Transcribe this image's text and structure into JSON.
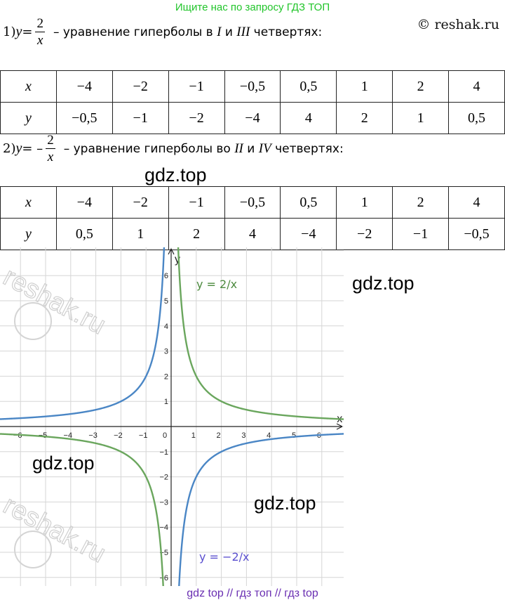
{
  "banner": "Ищите нас по запросу ГДЗ ТОП",
  "copyright": "© reshak.ru",
  "eq1": {
    "prefix": "1) ",
    "y": "y",
    "eq": " = ",
    "num": "2",
    "den": "x",
    "desc_a": "– уравнение гиперболы в ",
    "q1": "I",
    "and": " и ",
    "q2": "III",
    "desc_b": " четвертях:"
  },
  "eq2": {
    "prefix": "2) ",
    "y": "y",
    "eq": " = –",
    "num": "2",
    "den": "x",
    "desc_a": "– уравнение гиперболы во ",
    "q1": "II",
    "and": " и ",
    "q2": "IV",
    "desc_b": " четвертях:"
  },
  "table1": {
    "x_label": "x",
    "y_label": "y",
    "x": [
      "−4",
      "−2",
      "−1",
      "−0,5",
      "0,5",
      "1",
      "2",
      "4"
    ],
    "y": [
      "−0,5",
      "−1",
      "−2",
      "−4",
      "4",
      "2",
      "1",
      "0,5"
    ]
  },
  "table2": {
    "x_label": "x",
    "y_label": "y",
    "x": [
      "−4",
      "−2",
      "−1",
      "−0,5",
      "0,5",
      "1",
      "2",
      "4"
    ],
    "y": [
      "0,5",
      "1",
      "2",
      "4",
      "−4",
      "−2",
      "−1",
      "−0,5"
    ]
  },
  "watermarks": [
    "gdz.top",
    "gdz.top",
    "gdz.top",
    "gdz.top"
  ],
  "reshak_watermark": "reshak.ru",
  "bottom_bar": "gdz top  //  гдз топ  //  гдз top",
  "chart_data": {
    "type": "line",
    "x_axis_label": "x",
    "y_axis_label": "y",
    "xlim": [
      -6.8,
      6.8
    ],
    "ylim": [
      -6.7,
      6.9
    ],
    "x_ticks": [
      -6,
      -5,
      -4,
      -3,
      -2,
      -1,
      0,
      1,
      2,
      3,
      4,
      5,
      6
    ],
    "y_ticks": [
      -6,
      -5,
      -4,
      -3,
      -2,
      -1,
      1,
      2,
      3,
      4,
      5,
      6
    ],
    "grid": true,
    "series": [
      {
        "name": "y = 2/x",
        "k": 2,
        "color": "#6aa65d"
      },
      {
        "name": "y = −2/x",
        "k": -2,
        "color": "#4a86c5"
      }
    ],
    "series_label_colors": [
      "#4c8a3e",
      "#5a4fcf"
    ]
  }
}
